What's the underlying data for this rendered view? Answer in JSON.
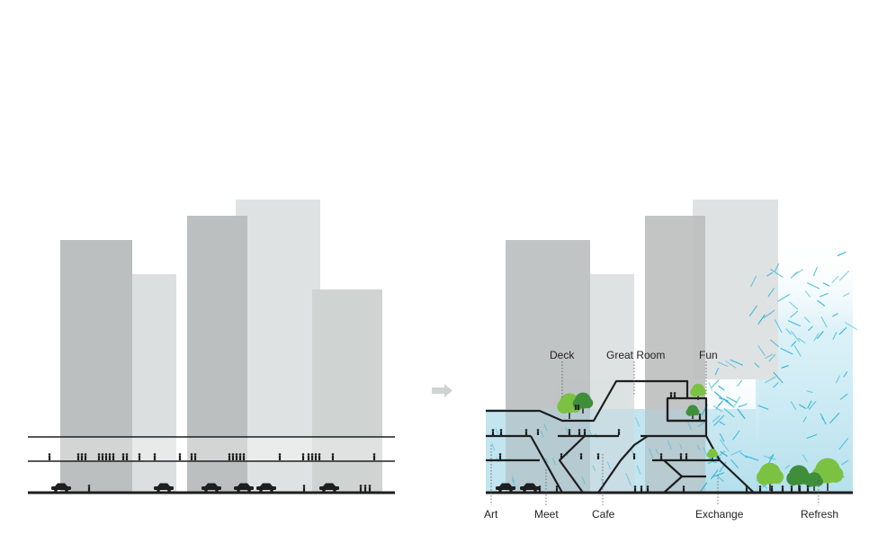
{
  "left_panel": {},
  "arrow": {
    "icon": "arrow-right-icon"
  },
  "right_panel": {
    "labels": {
      "deck": "Deck",
      "great_room": "Great Room",
      "fun": "Fun",
      "art": "Art",
      "meet": "Meet",
      "cafe": "Cafe",
      "exchange": "Exchange",
      "refresh": "Refresh"
    }
  },
  "colors": {
    "building_dark": "#bcbfbf",
    "building_light": "#dcdfdf",
    "building_mid": "#cfd3d2",
    "water": "#a9dbea",
    "rain": "#2fb4d6",
    "line": "#1e1e1e",
    "tree_green": "#7cc242",
    "tree_dark": "#3f8f3a",
    "arrow": "#cfd3d3"
  }
}
